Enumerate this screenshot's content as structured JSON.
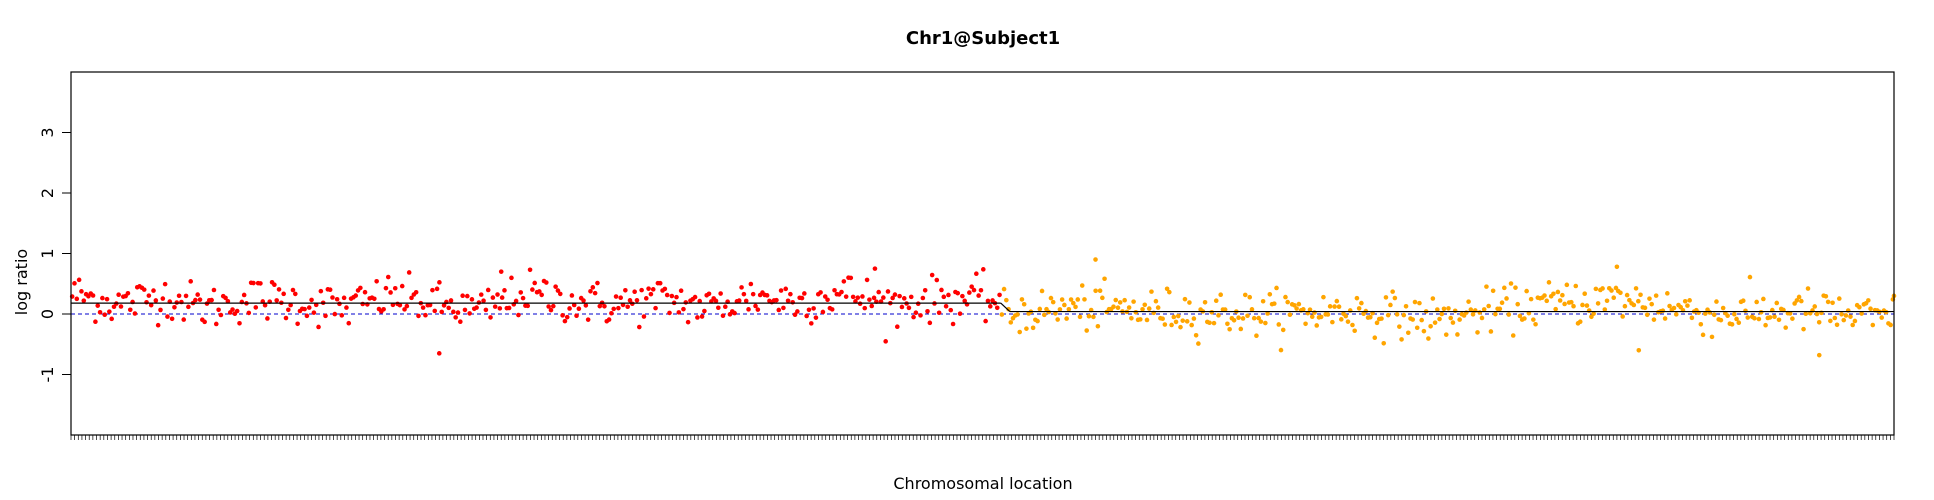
{
  "chart_data": {
    "type": "scatter",
    "title": "Chr1@Subject1",
    "xlabel": "Chromosomal location",
    "ylabel": "log ratio",
    "xlim": [
      0,
      1000
    ],
    "ylim": [
      -2,
      4
    ],
    "yticks": [
      -1,
      0,
      1,
      2,
      3
    ],
    "ytick_labels": [
      "-1",
      "0",
      "1",
      "2",
      "3"
    ],
    "baseline": 0,
    "grid": false,
    "legend": "none",
    "x_tick_count": 500,
    "series": [
      {
        "color": "#ff0000",
        "x_range": [
          0,
          510
        ],
        "anchors_x": [
          0,
          25,
          50,
          75,
          100,
          125,
          150,
          175,
          200,
          225,
          250,
          275,
          300,
          325,
          350,
          375,
          400,
          425,
          450,
          475,
          500,
          510
        ],
        "anchors_y": [
          0.35,
          0.15,
          0.3,
          0.1,
          0.25,
          0.2,
          0.1,
          0.3,
          0.15,
          0.05,
          0.35,
          0.2,
          0.15,
          0.25,
          0.1,
          0.3,
          0.2,
          0.35,
          0.15,
          0.25,
          0.25,
          0.2
        ],
        "count": 400,
        "spread": 0.2
      },
      {
        "color": "#ffa500",
        "x_range": [
          510,
          1000
        ],
        "anchors_x": [
          510,
          550,
          600,
          650,
          700,
          750,
          800,
          850,
          900,
          950,
          1000
        ],
        "anchors_y": [
          0.0,
          0.1,
          0.05,
          0.0,
          0.05,
          -0.1,
          0.15,
          0.25,
          0.0,
          0.05,
          -0.1
        ],
        "count": 400,
        "spread": 0.2
      }
    ],
    "extra_points": [
      {
        "x": 562,
        "y": 0.9,
        "color": "#ffa500"
      },
      {
        "x": 202,
        "y": -0.65,
        "color": "#ff0000"
      },
      {
        "x": 441,
        "y": 0.75,
        "color": "#ff0000"
      },
      {
        "x": 236,
        "y": 0.7,
        "color": "#ff0000"
      },
      {
        "x": 848,
        "y": 0.78,
        "color": "#ffa500"
      },
      {
        "x": 860,
        "y": -0.6,
        "color": "#ffa500"
      },
      {
        "x": 959,
        "y": -0.68,
        "color": "#ffa500"
      },
      {
        "x": 1000,
        "y": 0.3,
        "color": "#ffa500"
      }
    ],
    "segments": [
      {
        "x": [
          0,
          510
        ],
        "y": 0.18
      },
      {
        "x": [
          515,
          1000
        ],
        "y": 0.04
      }
    ],
    "segment_color": "#000000",
    "baseline_color": "#0000cd"
  }
}
